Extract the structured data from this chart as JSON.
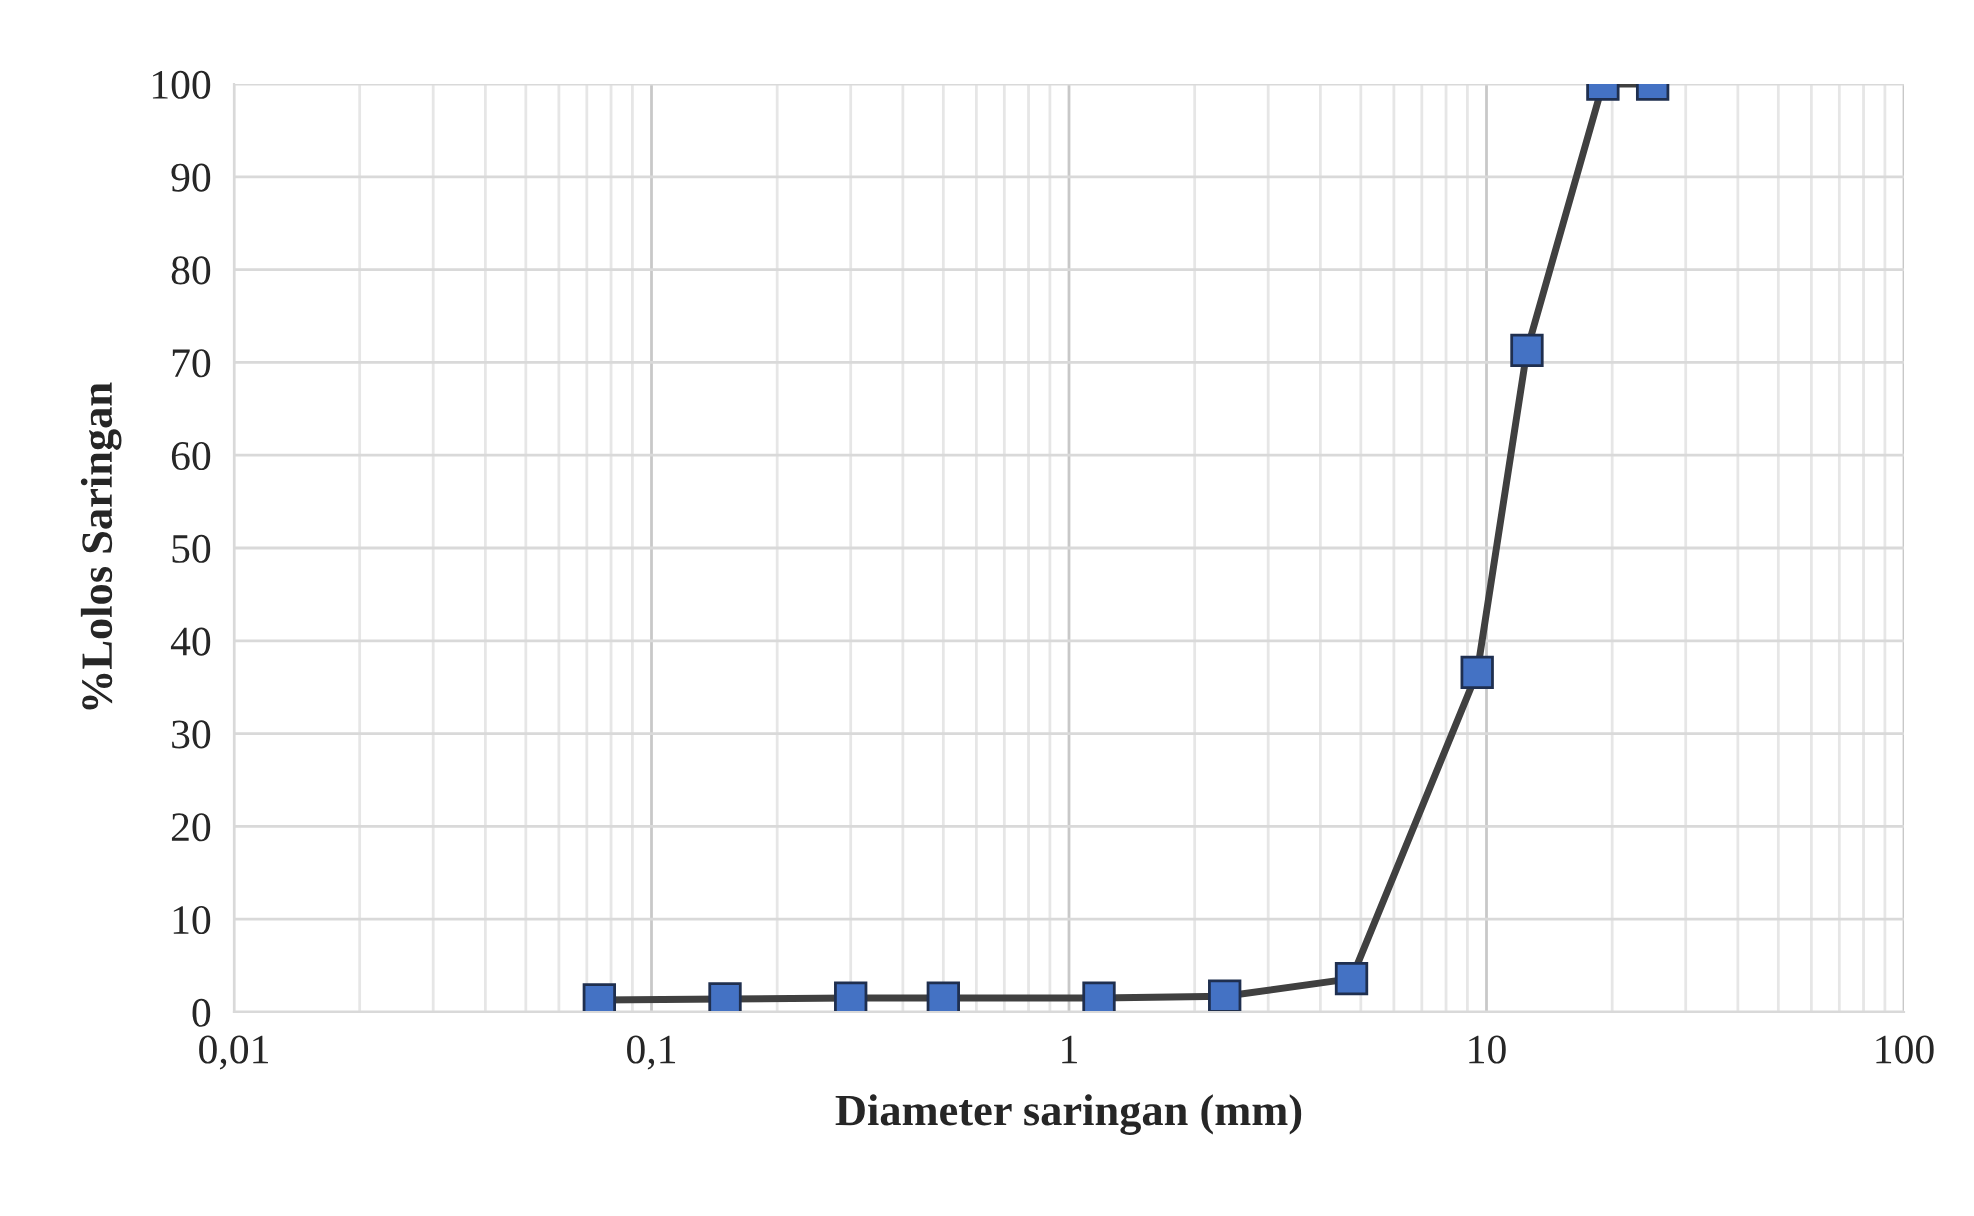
{
  "chart_data": {
    "type": "line",
    "xlabel": "Diameter saringan (mm)",
    "ylabel": "%Lolos Saringan",
    "x": [
      0.075,
      0.15,
      0.3,
      0.5,
      1.18,
      2.36,
      4.75,
      9.5,
      12.5,
      19,
      25
    ],
    "series": [
      {
        "color": "#4472c4",
        "values": [
          1.3,
          1.4,
          1.5,
          1.5,
          1.5,
          1.7,
          3.6,
          36.6,
          71.3,
          100,
          100
        ]
      }
    ],
    "log": "x",
    "xlim": [
      0.01,
      100
    ],
    "xticks": [
      {
        "value": 0.01,
        "label": "0,01"
      },
      {
        "value": 0.1,
        "label": "0,1"
      },
      1,
      10,
      100
    ],
    "ylim": [
      0,
      100
    ],
    "yticks": [
      0,
      10,
      20,
      30,
      40,
      50,
      60,
      70,
      80,
      90,
      100
    ],
    "grid": true,
    "marker": "square",
    "line_style": "solid",
    "legend": false
  }
}
